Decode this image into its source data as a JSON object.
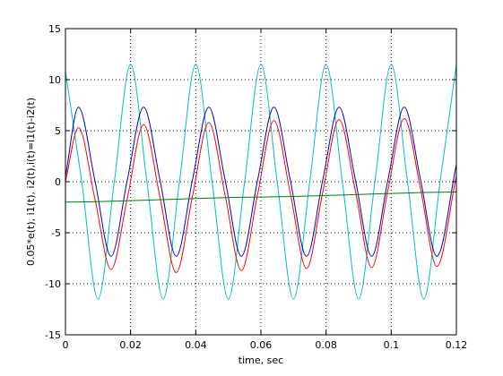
{
  "chart_data": {
    "type": "line",
    "title": "",
    "xlabel": "time, sec",
    "ylabel": "0.05*e(t), i1(t), i2(t),i(t)=i1(t)-i2(t)",
    "xlim": [
      0,
      0.12
    ],
    "ylim": [
      -15,
      15
    ],
    "grid": true,
    "xticks": [
      "0",
      "0.02",
      "0.04",
      "0.06",
      "0.08",
      "0.1",
      "0.12"
    ],
    "yticks": [
      "-15",
      "-10",
      "-5",
      "0",
      "5",
      "10",
      "15"
    ],
    "series": [
      {
        "color": "#00bfbf",
        "x": [
          0,
          0.005,
          0.01,
          0.015,
          0.02,
          0.025,
          0.03,
          0.035,
          0.04,
          0.045,
          0.05,
          0.055,
          0.06,
          0.065,
          0.07,
          0.075,
          0.08,
          0.085,
          0.09,
          0.095,
          0.1,
          0.105,
          0.11,
          0.115,
          0.12
        ],
        "y": [
          10.8,
          0,
          -11.5,
          0,
          11.5,
          0,
          -11.5,
          0,
          11.5,
          0,
          -11.5,
          0,
          11.5,
          0,
          -11.5,
          0,
          11.5,
          0,
          -11.5,
          0,
          11.5,
          0,
          -11.5,
          0,
          11.5
        ]
      },
      {
        "color": "#0000bf",
        "x": [
          0,
          0.004,
          0.009,
          0.014,
          0.019,
          0.024,
          0.029,
          0.034,
          0.039,
          0.044,
          0.049,
          0.054,
          0.059,
          0.064,
          0.069,
          0.074,
          0.079,
          0.084,
          0.089,
          0.094,
          0.099,
          0.104,
          0.109,
          0.114,
          0.12
        ],
        "y": [
          0.5,
          7.3,
          0.2,
          -7.3,
          0.2,
          7.3,
          0.2,
          -7.3,
          0.2,
          7.3,
          0.2,
          -7.3,
          0.2,
          7.3,
          0.2,
          -7.3,
          0.2,
          7.3,
          0.2,
          -7.3,
          0.2,
          7.3,
          0.2,
          -7.3,
          1.7
        ]
      },
      {
        "color": "#ff0000",
        "x": [
          0,
          0.004,
          0.009,
          0.014,
          0.019,
          0.024,
          0.029,
          0.034,
          0.039,
          0.044,
          0.049,
          0.054,
          0.059,
          0.064,
          0.069,
          0.074,
          0.079,
          0.084,
          0.089,
          0.094,
          0.099,
          0.104,
          0.109,
          0.114,
          0.12
        ],
        "y": [
          0.0,
          5.3,
          -1.6,
          -8.6,
          -1.6,
          5.6,
          -1.5,
          -8.9,
          -1.4,
          5.8,
          -1.3,
          -8.7,
          -1.2,
          6.0,
          -1.1,
          -8.5,
          -1.0,
          6.1,
          -0.9,
          -8.4,
          -0.8,
          6.2,
          -0.7,
          -8.3,
          0.6
        ]
      },
      {
        "color": "#007f00",
        "x": [
          0,
          0.01,
          0.02,
          0.03,
          0.04,
          0.05,
          0.06,
          0.07,
          0.08,
          0.09,
          0.1,
          0.11,
          0.12
        ],
        "y": [
          -2.0,
          -1.95,
          -1.85,
          -1.75,
          -1.65,
          -1.55,
          -1.5,
          -1.45,
          -1.35,
          -1.25,
          -1.15,
          -1.05,
          -1.0
        ]
      }
    ]
  }
}
